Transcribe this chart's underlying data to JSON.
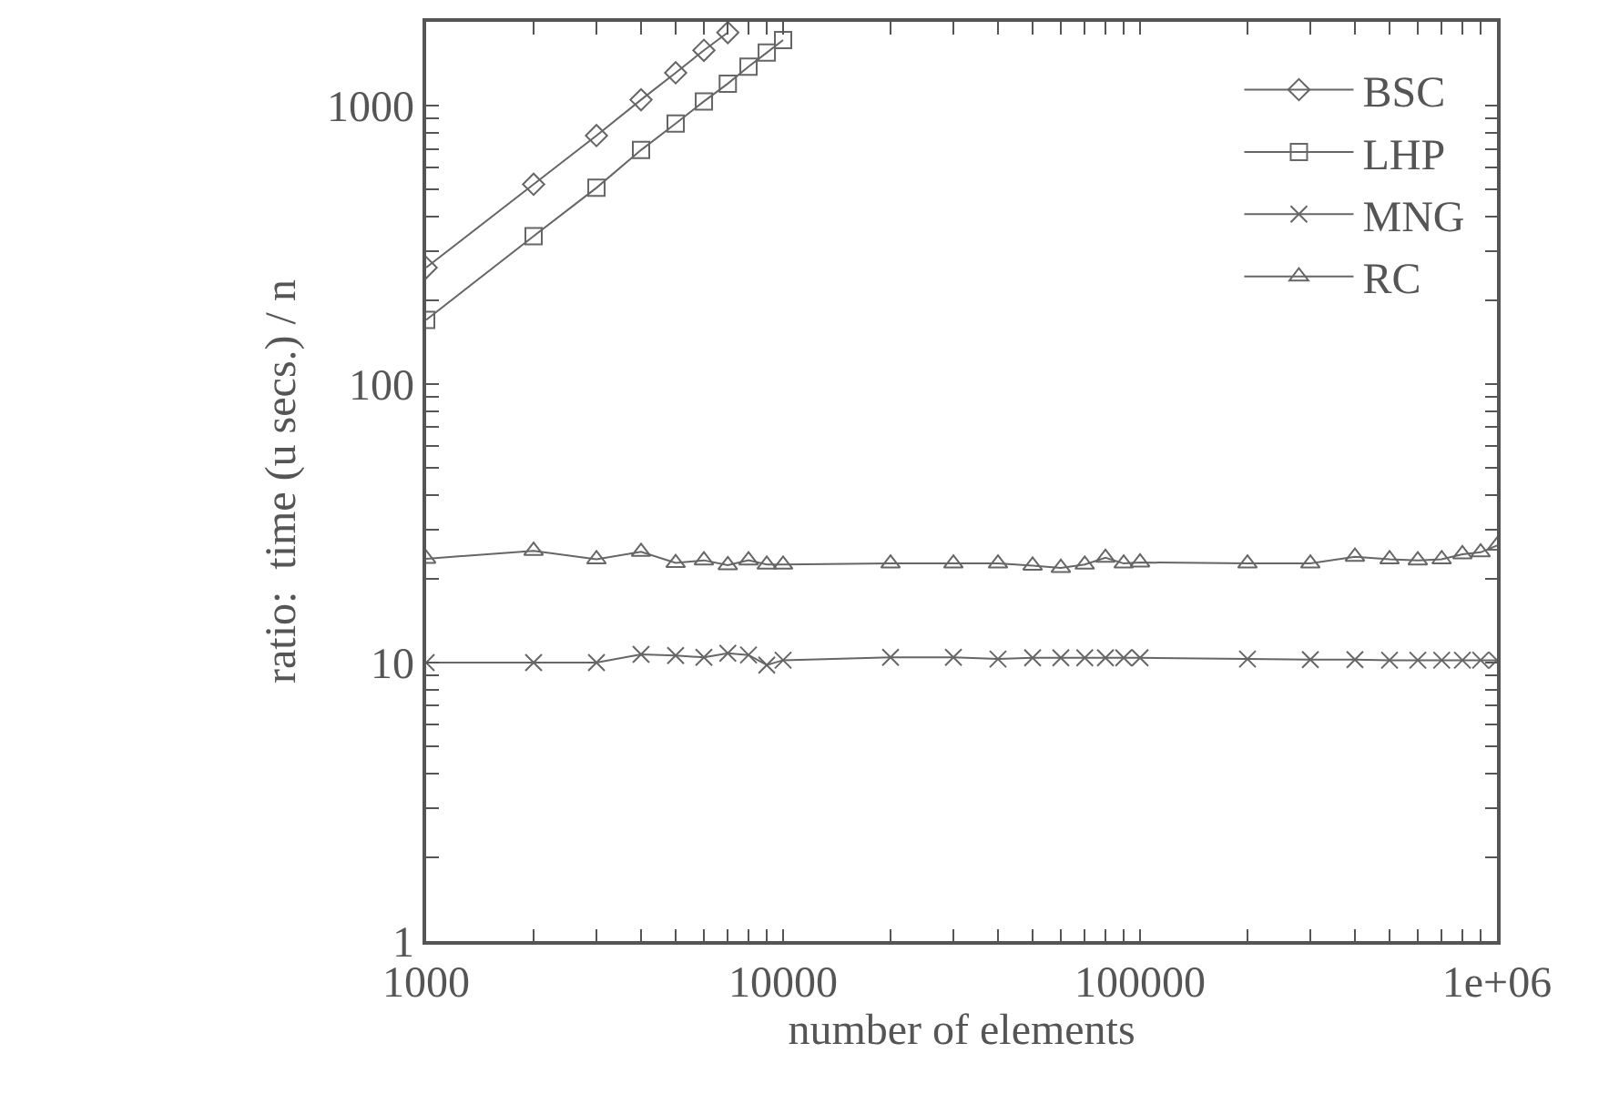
{
  "chart_data": {
    "type": "line",
    "xlabel": "number of elements",
    "ylabel": "ratio:  time (u secs.) / n",
    "log": "xy",
    "legend": "top right",
    "xlim": [
      1000,
      1000000
    ],
    "ylim": [
      1,
      2000
    ],
    "xticks": [
      1000,
      {
        "value": 2000,
        "label": null
      },
      {
        "value": 3000,
        "label": null
      },
      {
        "value": 4000,
        "label": null
      },
      {
        "value": 5000,
        "label": null
      },
      {
        "value": 6000,
        "label": null
      },
      {
        "value": 7000,
        "label": null
      },
      {
        "value": 8000,
        "label": null
      },
      {
        "value": 9000,
        "label": null
      },
      10000,
      {
        "value": 20000,
        "label": null
      },
      {
        "value": 30000,
        "label": null
      },
      {
        "value": 40000,
        "label": null
      },
      {
        "value": 50000,
        "label": null
      },
      {
        "value": 60000,
        "label": null
      },
      {
        "value": 70000,
        "label": null
      },
      {
        "value": 80000,
        "label": null
      },
      {
        "value": 90000,
        "label": null
      },
      100000,
      {
        "value": 200000,
        "label": null
      },
      {
        "value": 300000,
        "label": null
      },
      {
        "value": 400000,
        "label": null
      },
      {
        "value": 500000,
        "label": null
      },
      {
        "value": 600000,
        "label": null
      },
      {
        "value": 700000,
        "label": null
      },
      {
        "value": 800000,
        "label": null
      },
      {
        "value": 900000,
        "label": null
      },
      {
        "value": 1000000,
        "label": "1e+06"
      }
    ],
    "yticks": [
      1,
      {
        "value": 2,
        "label": null
      },
      {
        "value": 3,
        "label": null
      },
      {
        "value": 4,
        "label": null
      },
      {
        "value": 5,
        "label": null
      },
      {
        "value": 6,
        "label": null
      },
      {
        "value": 7,
        "label": null
      },
      {
        "value": 8,
        "label": null
      },
      {
        "value": 9,
        "label": null
      },
      10,
      {
        "value": 20,
        "label": null
      },
      {
        "value": 30,
        "label": null
      },
      {
        "value": 40,
        "label": null
      },
      {
        "value": 50,
        "label": null
      },
      {
        "value": 60,
        "label": null
      },
      {
        "value": 70,
        "label": null
      },
      {
        "value": 80,
        "label": null
      },
      {
        "value": 90,
        "label": null
      },
      100,
      {
        "value": 200,
        "label": null
      },
      {
        "value": 300,
        "label": null
      },
      {
        "value": 400,
        "label": null
      },
      {
        "value": 500,
        "label": null
      },
      {
        "value": 600,
        "label": null
      },
      {
        "value": 700,
        "label": null
      },
      {
        "value": 800,
        "label": null
      },
      {
        "value": 900,
        "label": null
      },
      1000,
      {
        "value": 2000,
        "label": null
      }
    ],
    "x": [
      1000,
      2000,
      3000,
      4000,
      5000,
      6000,
      7000,
      8000,
      9000,
      10000,
      20000,
      30000,
      40000,
      50000,
      60000,
      70000,
      80000,
      90000,
      100000,
      200000,
      300000,
      400000,
      500000,
      600000,
      700000,
      800000,
      900000,
      1000000
    ],
    "series": [
      {
        "name": "BSC",
        "color": "#666666",
        "marker": "diamond",
        "x": [
          1000,
          2000,
          3000,
          4000,
          5000,
          6000,
          7000
        ],
        "values": [
          262,
          522,
          781,
          1050,
          1313,
          1580,
          1830
        ]
      },
      {
        "name": "LHP",
        "color": "#666666",
        "marker": "square",
        "x": [
          1000,
          2000,
          3000,
          4000,
          5000,
          6000,
          7000,
          8000,
          9000,
          10000
        ],
        "values": [
          170,
          340,
          507,
          693,
          863,
          1036,
          1200,
          1380,
          1550,
          1720
        ]
      },
      {
        "name": "MNG",
        "color": "#666666",
        "marker": "cross",
        "values": [
          10,
          10,
          10,
          10.7,
          10.6,
          10.45,
          10.8,
          10.65,
          9.8,
          10.2,
          10.45,
          10.45,
          10.3,
          10.4,
          10.4,
          10.4,
          10.4,
          10.4,
          10.4,
          10.3,
          10.25,
          10.25,
          10.2,
          10.2,
          10.2,
          10.2,
          10.2,
          10.2
        ]
      },
      {
        "name": "RC",
        "color": "#666666",
        "marker": "triangle",
        "values": [
          23.6,
          25.2,
          23.5,
          25,
          22.8,
          23.3,
          22.4,
          23.3,
          22.5,
          22.5,
          22.7,
          22.7,
          22.7,
          22.3,
          21.9,
          22.5,
          23.8,
          22.7,
          22.9,
          22.7,
          22.7,
          24.0,
          23.5,
          23.3,
          23.5,
          24.5,
          24.9,
          26.3
        ]
      }
    ]
  }
}
